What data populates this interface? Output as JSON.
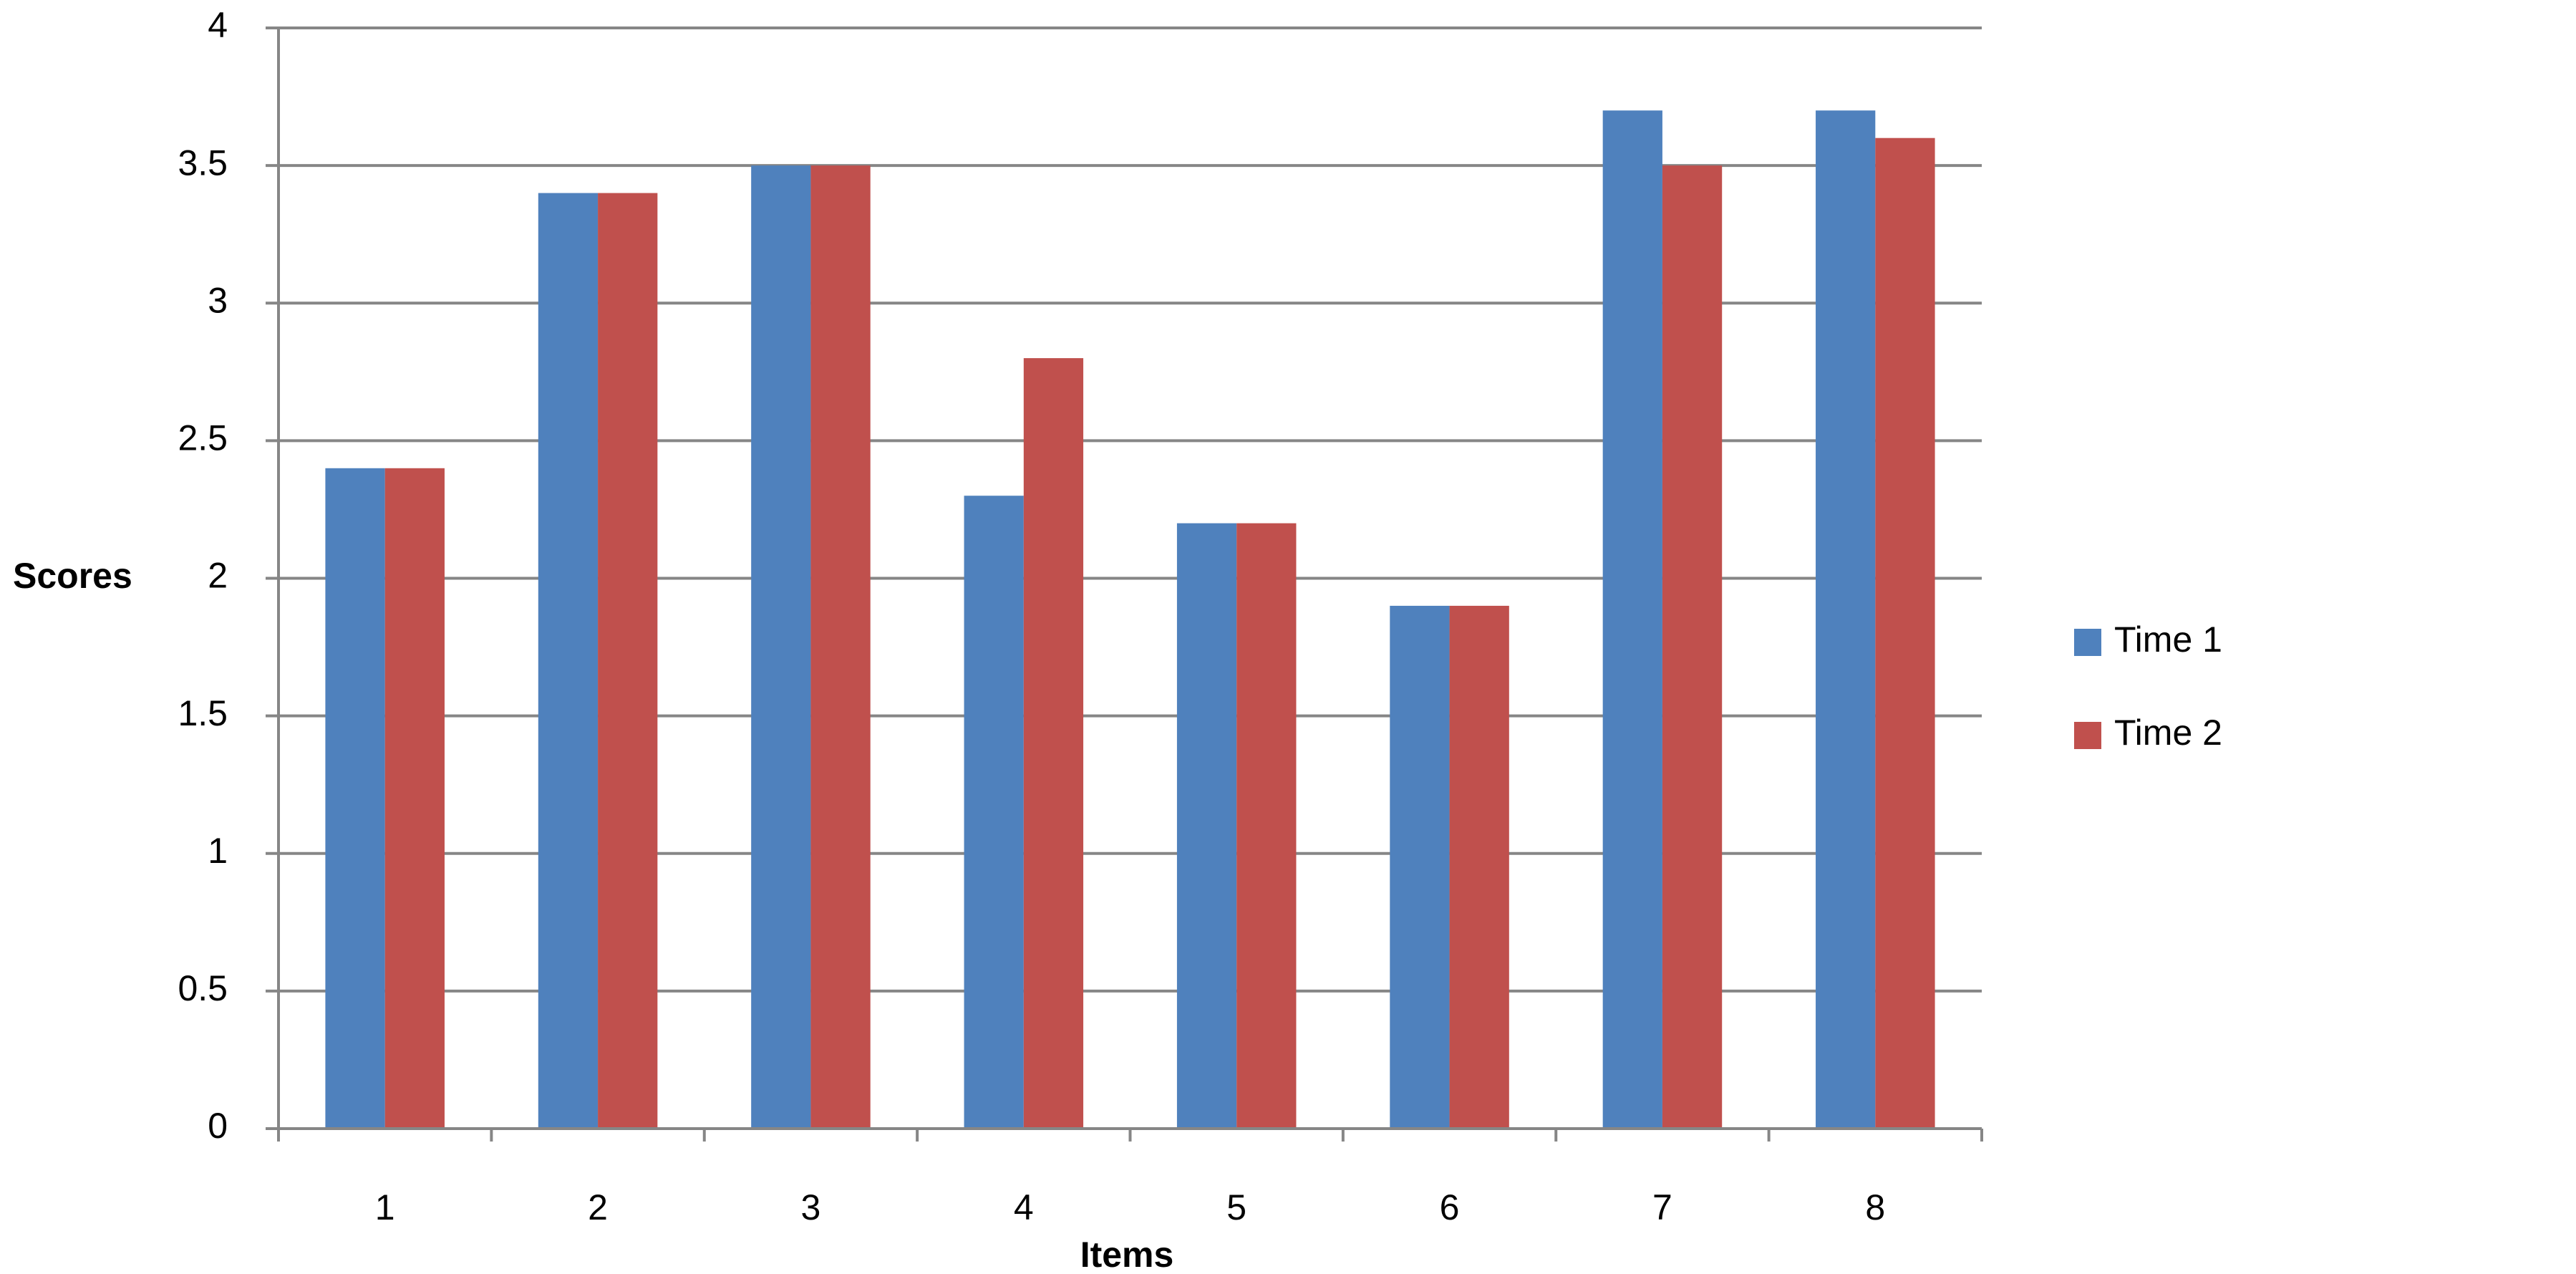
{
  "chart_data": {
    "type": "bar",
    "x_label": "Items",
    "y_label": "Scores",
    "categories": [
      "1",
      "2",
      "3",
      "4",
      "5",
      "6",
      "7",
      "8"
    ],
    "series": [
      {
        "name": "Time 1",
        "color": "#4f81bd",
        "values": [
          2.4,
          3.4,
          3.5,
          2.3,
          2.2,
          1.9,
          3.7,
          3.7
        ]
      },
      {
        "name": "Time 2",
        "color": "#c0504d",
        "values": [
          2.4,
          3.4,
          3.5,
          2.8,
          2.2,
          1.9,
          3.5,
          3.6
        ]
      }
    ],
    "ylim": [
      0,
      4
    ],
    "yticks": [
      0,
      0.5,
      1,
      1.5,
      2,
      2.5,
      3,
      3.5,
      4
    ],
    "grid": true,
    "legend": "right"
  }
}
